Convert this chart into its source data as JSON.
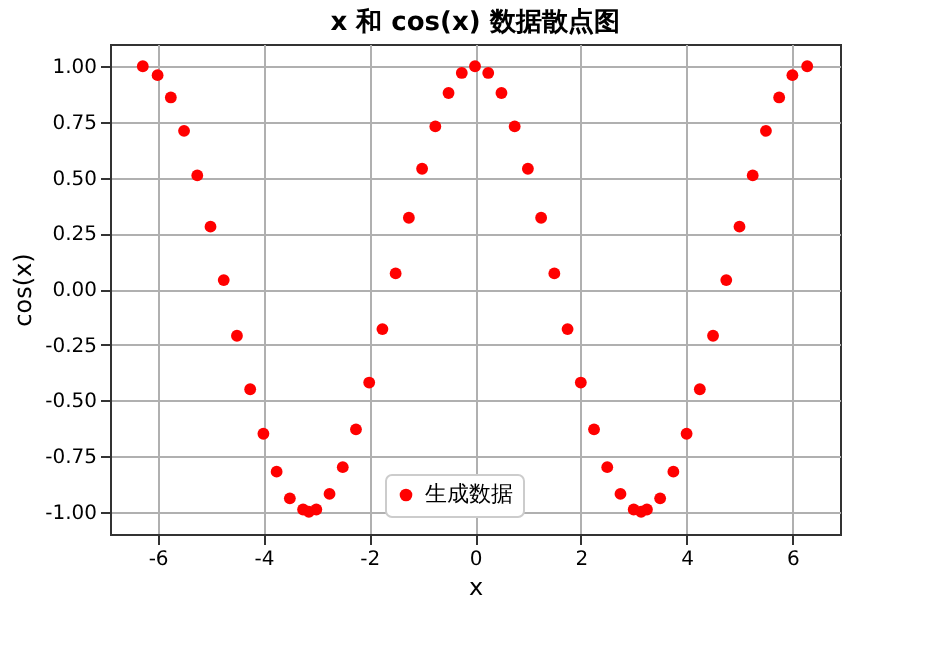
{
  "chart_data": {
    "type": "scatter",
    "title": "x 和 cos(x) 数据散点图",
    "xlabel": "x",
    "ylabel": "cos(x)",
    "xlim": [
      -6.9,
      6.9
    ],
    "xticks": [
      -6,
      -4,
      -2,
      0,
      2,
      4,
      6
    ],
    "ylim": [
      -1.1,
      1.1
    ],
    "yticks": [
      {
        "value": -1,
        "label": "-1.00"
      },
      {
        "value": -0.75,
        "label": "-0.75"
      },
      {
        "value": -0.5,
        "label": "-0.50"
      },
      {
        "value": -0.25,
        "label": "-0.25"
      },
      {
        "value": 0,
        "label": "0.00"
      },
      {
        "value": 0.25,
        "label": "0.25"
      },
      {
        "value": 0.5,
        "label": "0.50"
      },
      {
        "value": 0.75,
        "label": "0.75"
      },
      {
        "value": 1,
        "label": "1.00"
      }
    ],
    "grid": true,
    "legend": "bottom",
    "marker": "circle",
    "x": [
      -6.28,
      -6.0,
      -5.75,
      -5.5,
      -5.25,
      -5.0,
      -4.75,
      -4.5,
      -4.25,
      -4.0,
      -3.75,
      -3.5,
      -3.25,
      -3.14,
      -3.0,
      -2.75,
      -2.5,
      -2.25,
      -2.0,
      -1.75,
      -1.5,
      -1.25,
      -1.0,
      -0.75,
      -0.5,
      -0.25,
      0,
      0.25,
      0.5,
      0.75,
      1.0,
      1.25,
      1.5,
      1.75,
      2.0,
      2.25,
      2.5,
      2.75,
      3.0,
      3.14,
      3.25,
      3.5,
      3.75,
      4.0,
      4.25,
      4.5,
      4.75,
      5.0,
      5.25,
      5.5,
      5.75,
      6.0,
      6.28
    ],
    "series": [
      {
        "name": "生成数据",
        "color": "#ff0000",
        "values": [
          1.0,
          0.96,
          0.86,
          0.71,
          0.51,
          0.28,
          0.04,
          -0.21,
          -0.45,
          -0.65,
          -0.82,
          -0.94,
          -0.99,
          -1.0,
          -0.99,
          -0.92,
          -0.8,
          -0.63,
          -0.42,
          -0.18,
          0.07,
          0.32,
          0.54,
          0.73,
          0.88,
          0.97,
          1.0,
          0.97,
          0.88,
          0.73,
          0.54,
          0.32,
          0.07,
          -0.18,
          -0.42,
          -0.63,
          -0.8,
          -0.92,
          -0.99,
          -1.0,
          -0.99,
          -0.94,
          -0.82,
          -0.65,
          -0.45,
          -0.21,
          0.04,
          0.28,
          0.51,
          0.71,
          0.86,
          0.96,
          1.0
        ]
      }
    ]
  }
}
